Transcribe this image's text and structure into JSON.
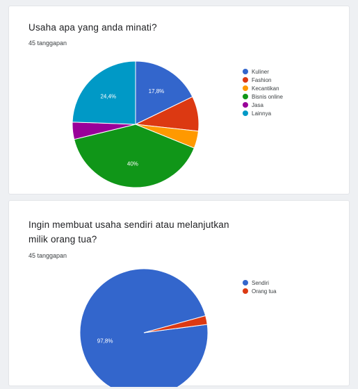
{
  "chart_data": [
    {
      "type": "pie",
      "title": "Usaha apa yang anda minati?",
      "subtitle": "45 tanggapan",
      "series": [
        {
          "name": "Kuliner",
          "value": 17.8,
          "label": "17,8%",
          "color": "#3366cc"
        },
        {
          "name": "Fashion",
          "value": 8.9,
          "label": "",
          "color": "#dc3912"
        },
        {
          "name": "Kecantikan",
          "value": 4.4,
          "label": "",
          "color": "#ff9900"
        },
        {
          "name": "Bisnis online",
          "value": 40,
          "label": "40%",
          "color": "#109618"
        },
        {
          "name": "Jasa",
          "value": 4.4,
          "label": "",
          "color": "#990099"
        },
        {
          "name": "Lainnya",
          "value": 24.4,
          "label": "24,4%",
          "color": "#0099c6"
        }
      ],
      "legend_position": "right"
    },
    {
      "type": "pie",
      "title": "Ingin membuat usaha sendiri atau melanjutkan milik orang tua?",
      "subtitle": "45 tanggapan",
      "series": [
        {
          "name": "Sendiri",
          "value": 97.8,
          "label": "97,8%",
          "color": "#3366cc"
        },
        {
          "name": "Orang tua",
          "value": 2.2,
          "label": "",
          "color": "#dc3912"
        }
      ],
      "legend_position": "right"
    }
  ]
}
